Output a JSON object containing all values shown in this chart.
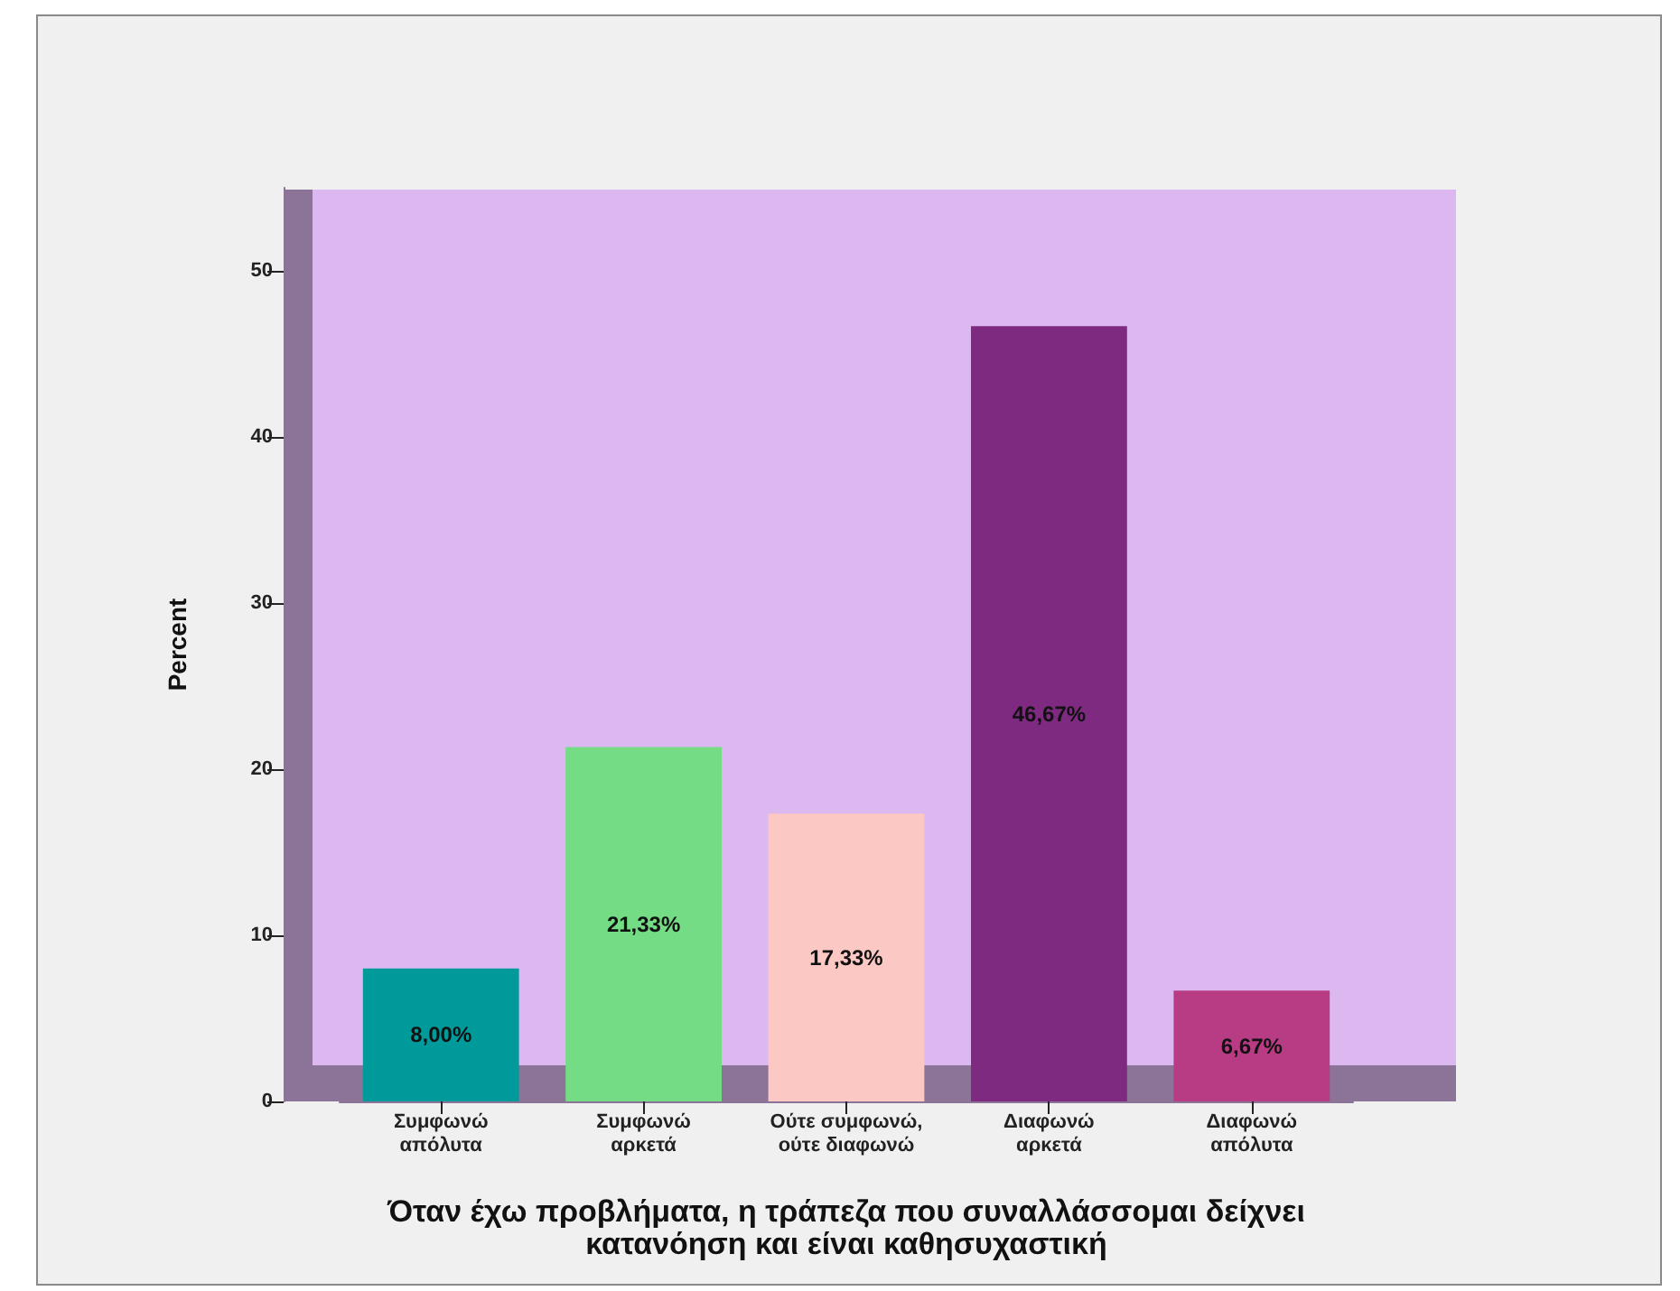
{
  "chart_data": {
    "type": "bar",
    "ylabel": "Percent",
    "xlabel": "Όταν έχω προβλήματα, η τράπεζα που συναλλάσσομαι δείχνει κατανόηση και είναι καθησυχαστική",
    "categories": [
      "Συμφωνώ απόλυτα",
      "Συμφωνώ αρκετά",
      "Ούτε συμφωνώ, ούτε διαφωνώ",
      "Διαφωνώ αρκετά",
      "Διαφωνώ απόλυτα"
    ],
    "values": [
      8,
      21.33,
      17.33,
      46.67,
      6.67
    ],
    "colors": [
      "#009a9a",
      "#74dc84",
      "#fcc8c4",
      "#7e2a80",
      "#b83c84"
    ],
    "value_labels": [
      "8,00%",
      "21,33%",
      "17,33%",
      "46,67%",
      "6,67%"
    ],
    "ylim": [
      0,
      55
    ],
    "yticks": [
      0,
      10,
      20,
      30,
      40,
      50
    ]
  }
}
